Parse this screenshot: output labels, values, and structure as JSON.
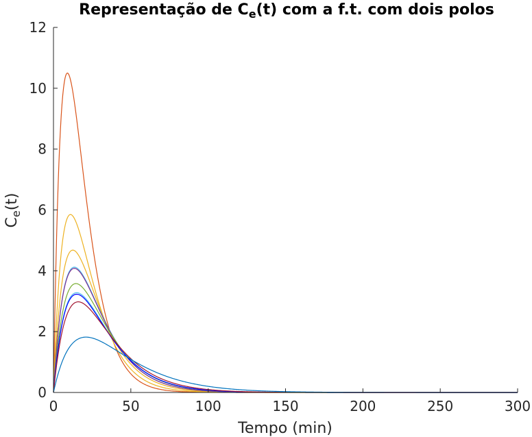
{
  "chart_data": {
    "type": "line",
    "title": {
      "prefix": "Representação de C",
      "sub": "e",
      "suffix": "(t) com a f.t. com dois polos"
    },
    "xlabel": "Tempo (min)",
    "ylabel": {
      "main": "C",
      "sub": "e",
      "suffix": "(t)"
    },
    "xlim": [
      0,
      300
    ],
    "ylim": [
      0,
      12
    ],
    "xticks": [
      0,
      50,
      100,
      150,
      200,
      250,
      300
    ],
    "yticks": [
      0,
      2,
      4,
      6,
      8,
      10,
      12
    ],
    "grid": false,
    "legend": "none",
    "series": [
      {
        "color": "#D95319",
        "peak_time": 9,
        "peak_value": 10.5
      },
      {
        "color": "#EDB120",
        "peak_time": 11,
        "peak_value": 5.85
      },
      {
        "color": "#EDB120",
        "peak_time": 12.5,
        "peak_value": 4.68
      },
      {
        "color": "#4DBEEE",
        "peak_time": 13.5,
        "peak_value": 4.12
      },
      {
        "color": "#7E2F8E",
        "peak_time": 13.5,
        "peak_value": 4.08
      },
      {
        "color": "#77AC30",
        "peak_time": 14.5,
        "peak_value": 3.58
      },
      {
        "color": "#4DBEEE",
        "peak_time": 15,
        "peak_value": 3.28
      },
      {
        "color": "#0000FF",
        "peak_time": 15,
        "peak_value": 3.23
      },
      {
        "color": "#A2142F",
        "peak_time": 16,
        "peak_value": 2.98
      },
      {
        "color": "#0072BD",
        "peak_time": 21,
        "peak_value": 1.82
      }
    ]
  }
}
